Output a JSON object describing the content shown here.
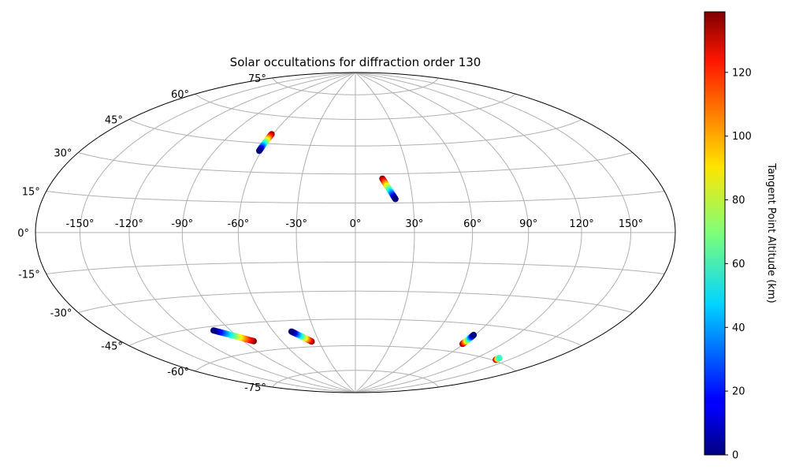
{
  "chart_data": {
    "type": "scatter",
    "projection": "hammer",
    "title": "Solar occultations for diffraction order 130",
    "grid": true,
    "x_ticks": [
      "-150°",
      "-120°",
      "-90°",
      "-60°",
      "-30°",
      "0°",
      "30°",
      "60°",
      "90°",
      "120°",
      "150°"
    ],
    "x_tick_values": [
      -150,
      -120,
      -90,
      -60,
      -30,
      0,
      30,
      60,
      90,
      120,
      150
    ],
    "y_ticks": [
      "-75°",
      "-60°",
      "-45°",
      "-30°",
      "-15°",
      "0°",
      "15°",
      "30°",
      "45°",
      "60°",
      "75°"
    ],
    "y_tick_values": [
      -75,
      -60,
      -45,
      -30,
      -15,
      0,
      15,
      30,
      45,
      60,
      75
    ],
    "colorbar": {
      "label": "Tangent Point Altitude (km)",
      "colormap": "jet",
      "range": [
        0,
        139
      ],
      "ticks": [
        "0",
        "20",
        "40",
        "60",
        "80",
        "100",
        "120"
      ],
      "tick_values": [
        0,
        20,
        40,
        60,
        80,
        100,
        120
      ]
    },
    "tracks": [
      {
        "lon_start": -61.5,
        "lat_start": 41.0,
        "lon_end": -61.0,
        "lat_end": 50.0,
        "alt_start": 0,
        "alt_end": 139
      },
      {
        "lon_start": 21.0,
        "lat_start": 17.0,
        "lon_end": 15.0,
        "lat_end": 27.5,
        "alt_start": 0,
        "alt_end": 139
      },
      {
        "lon_start": -102.0,
        "lat_start": -47.0,
        "lon_end": -82.0,
        "lat_end": -54.5,
        "alt_start": 0,
        "alt_end": 139
      },
      {
        "lon_start": -47.0,
        "lat_start": -51.0,
        "lon_end": -36.0,
        "lat_end": -57.0,
        "alt_start": 0,
        "alt_end": 139
      },
      {
        "lon_start": 89.0,
        "lat_start": -50.5,
        "lon_end": 89.0,
        "lat_end": -55.5,
        "alt_start": 0,
        "alt_end": 139
      },
      {
        "lon_start": 139.0,
        "lat_start": -58.5,
        "lon_end": 139.5,
        "lat_end": -59.5,
        "alt_start": 60,
        "alt_end": 139
      }
    ]
  }
}
